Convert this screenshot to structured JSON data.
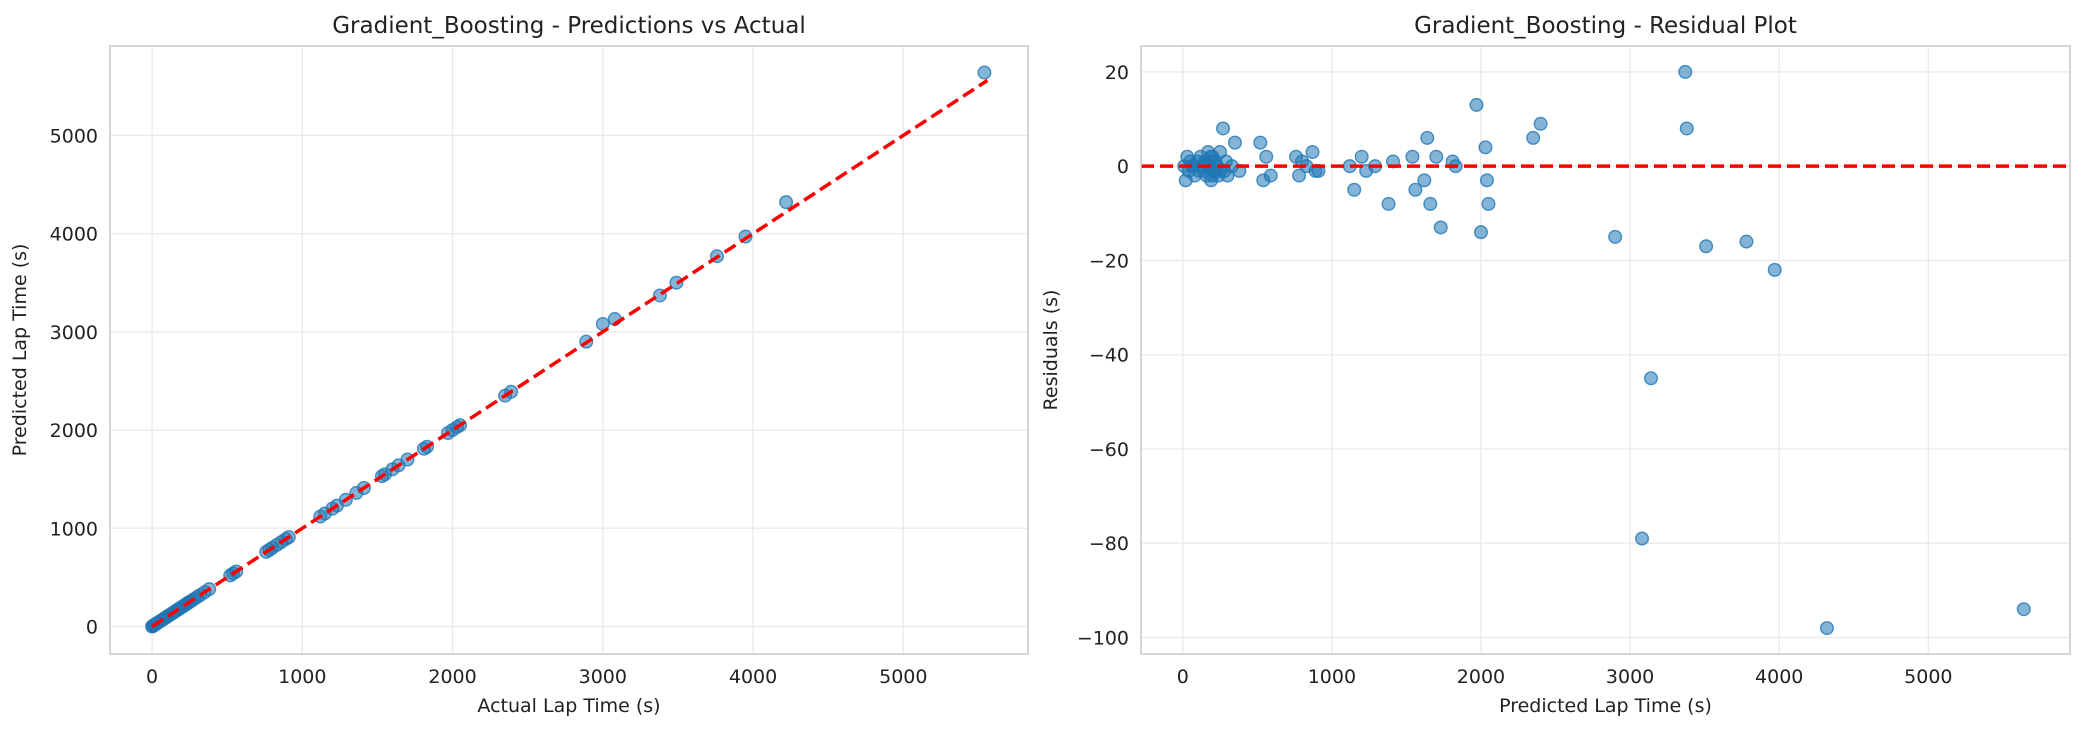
{
  "colors": {
    "points": "#1f77b4",
    "reference_line": "#ff0000",
    "grid": "#e9e9e9",
    "frame": "#cccccc",
    "text": "#222222"
  },
  "chart_data": [
    {
      "type": "scatter",
      "title": "Gradient_Boosting - Predictions vs Actual",
      "xlabel": "Actual Lap Time (s)",
      "ylabel": "Predicted Lap Time (s)",
      "xlim": [
        -280,
        5830
      ],
      "ylim": [
        -280,
        5910
      ],
      "xticks": [
        0,
        1000,
        2000,
        3000,
        4000,
        5000
      ],
      "yticks": [
        0,
        1000,
        2000,
        3000,
        4000,
        5000
      ],
      "grid": true,
      "reference_line": {
        "style": "dashed",
        "color": "#ff0000",
        "x": [
          0,
          5560
        ],
        "y": [
          0,
          5560
        ]
      },
      "points": {
        "x": [
          0,
          5,
          10,
          15,
          20,
          25,
          30,
          40,
          50,
          60,
          70,
          80,
          90,
          100,
          110,
          120,
          130,
          140,
          150,
          160,
          170,
          180,
          190,
          200,
          210,
          220,
          230,
          240,
          250,
          260,
          280,
          300,
          320,
          350,
          380,
          520,
          540,
          560,
          760,
          780,
          800,
          830,
          860,
          890,
          910,
          1120,
          1150,
          1200,
          1230,
          1290,
          1360,
          1410,
          1530,
          1550,
          1600,
          1640,
          1700,
          1810,
          1830,
          1970,
          2000,
          2030,
          2050,
          2350,
          2390,
          2890,
          3000,
          3080,
          3380,
          3490,
          3760,
          3950,
          4220,
          5540
        ],
        "y": [
          0,
          5,
          10,
          15,
          20,
          25,
          30,
          40,
          50,
          60,
          70,
          80,
          90,
          100,
          110,
          120,
          130,
          140,
          150,
          160,
          170,
          180,
          190,
          200,
          210,
          220,
          230,
          240,
          250,
          260,
          280,
          300,
          320,
          350,
          380,
          520,
          540,
          560,
          760,
          780,
          800,
          830,
          860,
          890,
          910,
          1120,
          1150,
          1200,
          1230,
          1290,
          1360,
          1410,
          1530,
          1550,
          1600,
          1640,
          1700,
          1810,
          1830,
          1970,
          2000,
          2030,
          2050,
          2350,
          2390,
          2900,
          3080,
          3130,
          3370,
          3500,
          3770,
          3970,
          4320,
          5640
        ]
      }
    },
    {
      "type": "scatter",
      "title": "Gradient_Boosting - Residual Plot",
      "xlabel": "Predicted Lap Time (s)",
      "ylabel": "Residuals (s)",
      "xlim": [
        -280,
        5950
      ],
      "ylim": [
        -103.5,
        25.5
      ],
      "xticks": [
        0,
        1000,
        2000,
        3000,
        4000,
        5000
      ],
      "yticks": [
        20,
        0,
        -20,
        -40,
        -60,
        -80,
        -100
      ],
      "grid": true,
      "zero_line": {
        "style": "dashed",
        "color": "#ff0000",
        "y": 0
      },
      "points": {
        "x": [
          10,
          20,
          30,
          40,
          50,
          60,
          80,
          100,
          110,
          120,
          130,
          140,
          150,
          160,
          170,
          180,
          190,
          200,
          210,
          220,
          230,
          240,
          250,
          270,
          280,
          290,
          300,
          330,
          350,
          380,
          520,
          540,
          560,
          590,
          760,
          780,
          800,
          830,
          870,
          890,
          910,
          1120,
          1150,
          1200,
          1230,
          1290,
          1380,
          1410,
          1540,
          1560,
          1620,
          1640,
          1660,
          1700,
          1730,
          1810,
          1830,
          1970,
          2000,
          2030,
          2050,
          2040,
          2350,
          2400,
          2900,
          3080,
          3140,
          3370,
          3380,
          3510,
          3780,
          3970,
          4320,
          5640,
          70,
          180,
          200,
          230,
          250,
          150,
          190,
          210
        ],
        "y": [
          0,
          -3,
          2,
          -1,
          1,
          0,
          -2,
          1,
          -1,
          2,
          0,
          -1,
          1,
          -2,
          3,
          0,
          -3,
          2,
          -1,
          1,
          0,
          -2,
          3,
          8,
          -1,
          1,
          -2,
          0,
          5,
          -1,
          5,
          -3,
          2,
          -2,
          2,
          -2,
          1,
          0,
          3,
          -1,
          -1,
          0,
          -5,
          2,
          -1,
          0,
          -8,
          1,
          2,
          -5,
          -3,
          6,
          -8,
          2,
          -13,
          1,
          0,
          13,
          -14,
          4,
          -8,
          -3,
          6,
          9,
          -15,
          -79,
          -45,
          20,
          8,
          -17,
          -16,
          -22,
          -98,
          -94,
          0,
          1,
          -2,
          0,
          -1,
          1,
          2,
          -1
        ]
      }
    }
  ]
}
